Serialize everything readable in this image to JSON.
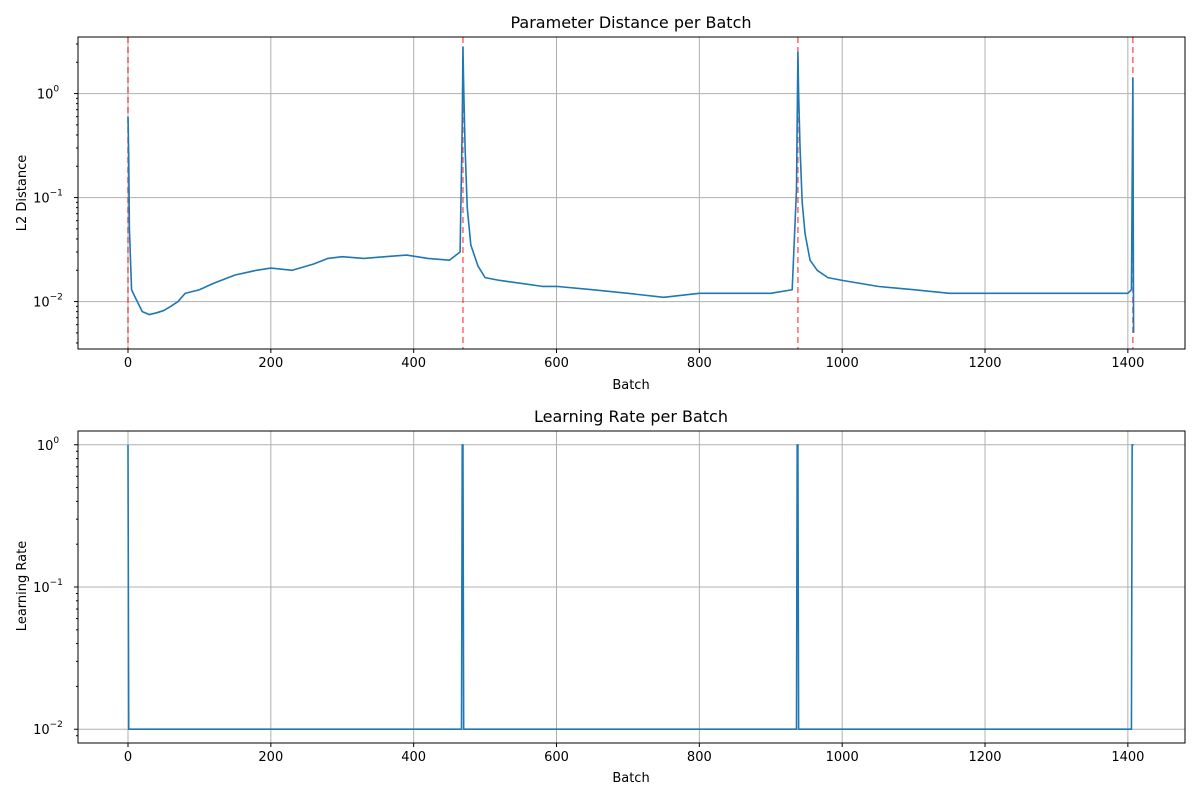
{
  "chart_data": [
    {
      "type": "line",
      "title": "Parameter Distance per Batch",
      "xlabel": "Batch",
      "ylabel": "L2 Distance",
      "xlim": [
        -70,
        1480
      ],
      "ylim": [
        0.0035,
        3.5
      ],
      "yscale": "log",
      "grid": true,
      "line_color": "#1f77b4",
      "marker_color": "#ff0000",
      "x_ticks": [
        {
          "value": 0,
          "label": "0"
        },
        {
          "value": 200,
          "label": "200"
        },
        {
          "value": 400,
          "label": "400"
        },
        {
          "value": 600,
          "label": "600"
        },
        {
          "value": 800,
          "label": "800"
        },
        {
          "value": 1000,
          "label": "1000"
        },
        {
          "value": 1200,
          "label": "1200"
        },
        {
          "value": 1400,
          "label": "1400"
        }
      ],
      "y_ticks": [
        {
          "value": 0.01,
          "base": "10",
          "exp": "−2"
        },
        {
          "value": 0.1,
          "base": "10",
          "exp": "−1"
        },
        {
          "value": 1,
          "base": "10",
          "exp": "0"
        }
      ],
      "vertical_markers": [
        0,
        469,
        938,
        1407
      ],
      "x": [
        0,
        1,
        2,
        5,
        10,
        20,
        30,
        40,
        50,
        60,
        70,
        80,
        100,
        120,
        150,
        180,
        200,
        230,
        260,
        280,
        300,
        330,
        360,
        390,
        420,
        450,
        465,
        468,
        469,
        470,
        472,
        475,
        480,
        490,
        500,
        520,
        550,
        580,
        600,
        650,
        700,
        750,
        800,
        850,
        900,
        930,
        936,
        938,
        939,
        941,
        944,
        948,
        955,
        965,
        980,
        1000,
        1050,
        1100,
        1150,
        1200,
        1250,
        1300,
        1350,
        1400,
        1405,
        1407,
        1408
      ],
      "values": [
        0.6,
        0.25,
        0.05,
        0.013,
        0.011,
        0.008,
        0.0075,
        0.0078,
        0.0082,
        0.009,
        0.01,
        0.012,
        0.013,
        0.015,
        0.018,
        0.02,
        0.021,
        0.02,
        0.023,
        0.026,
        0.027,
        0.026,
        0.027,
        0.028,
        0.026,
        0.025,
        0.03,
        0.5,
        2.8,
        1.2,
        0.3,
        0.08,
        0.035,
        0.022,
        0.017,
        0.016,
        0.015,
        0.014,
        0.014,
        0.013,
        0.012,
        0.011,
        0.012,
        0.012,
        0.012,
        0.013,
        0.12,
        2.5,
        1.0,
        0.3,
        0.09,
        0.045,
        0.025,
        0.02,
        0.017,
        0.016,
        0.014,
        0.013,
        0.012,
        0.012,
        0.012,
        0.012,
        0.012,
        0.012,
        0.013,
        1.4,
        0.005
      ]
    },
    {
      "type": "line",
      "title": "Learning Rate per Batch",
      "xlabel": "Batch",
      "ylabel": "Learning Rate",
      "xlim": [
        -70,
        1480
      ],
      "ylim": [
        0.008,
        1.25
      ],
      "yscale": "log",
      "grid": true,
      "line_color": "#1f77b4",
      "x_ticks": [
        {
          "value": 0,
          "label": "0"
        },
        {
          "value": 200,
          "label": "200"
        },
        {
          "value": 400,
          "label": "400"
        },
        {
          "value": 600,
          "label": "600"
        },
        {
          "value": 800,
          "label": "800"
        },
        {
          "value": 1000,
          "label": "1000"
        },
        {
          "value": 1200,
          "label": "1200"
        },
        {
          "value": 1400,
          "label": "1400"
        }
      ],
      "y_ticks": [
        {
          "value": 0.01,
          "base": "10",
          "exp": "−2"
        },
        {
          "value": 0.1,
          "base": "10",
          "exp": "−1"
        },
        {
          "value": 1,
          "base": "10",
          "exp": "0"
        }
      ],
      "x": [
        0,
        1,
        467,
        468,
        469,
        470,
        936,
        937,
        938,
        939,
        1405,
        1406,
        1407,
        1408
      ],
      "values": [
        1.0,
        0.01,
        0.01,
        1.0,
        1.0,
        0.01,
        0.01,
        1.0,
        1.0,
        0.01,
        0.01,
        1.0,
        1.0,
        1.0
      ]
    }
  ]
}
